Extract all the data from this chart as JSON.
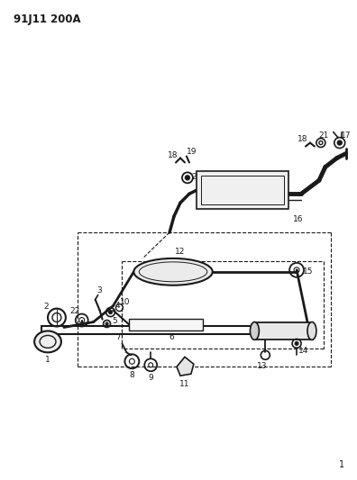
{
  "title": "91J11 200A",
  "bg_color": "#ffffff",
  "line_color": "#1a1a1a",
  "title_fontsize": 8.5,
  "label_fontsize": 6.5,
  "page_number": "1",
  "figsize": [
    3.96,
    5.33
  ],
  "dpi": 100
}
